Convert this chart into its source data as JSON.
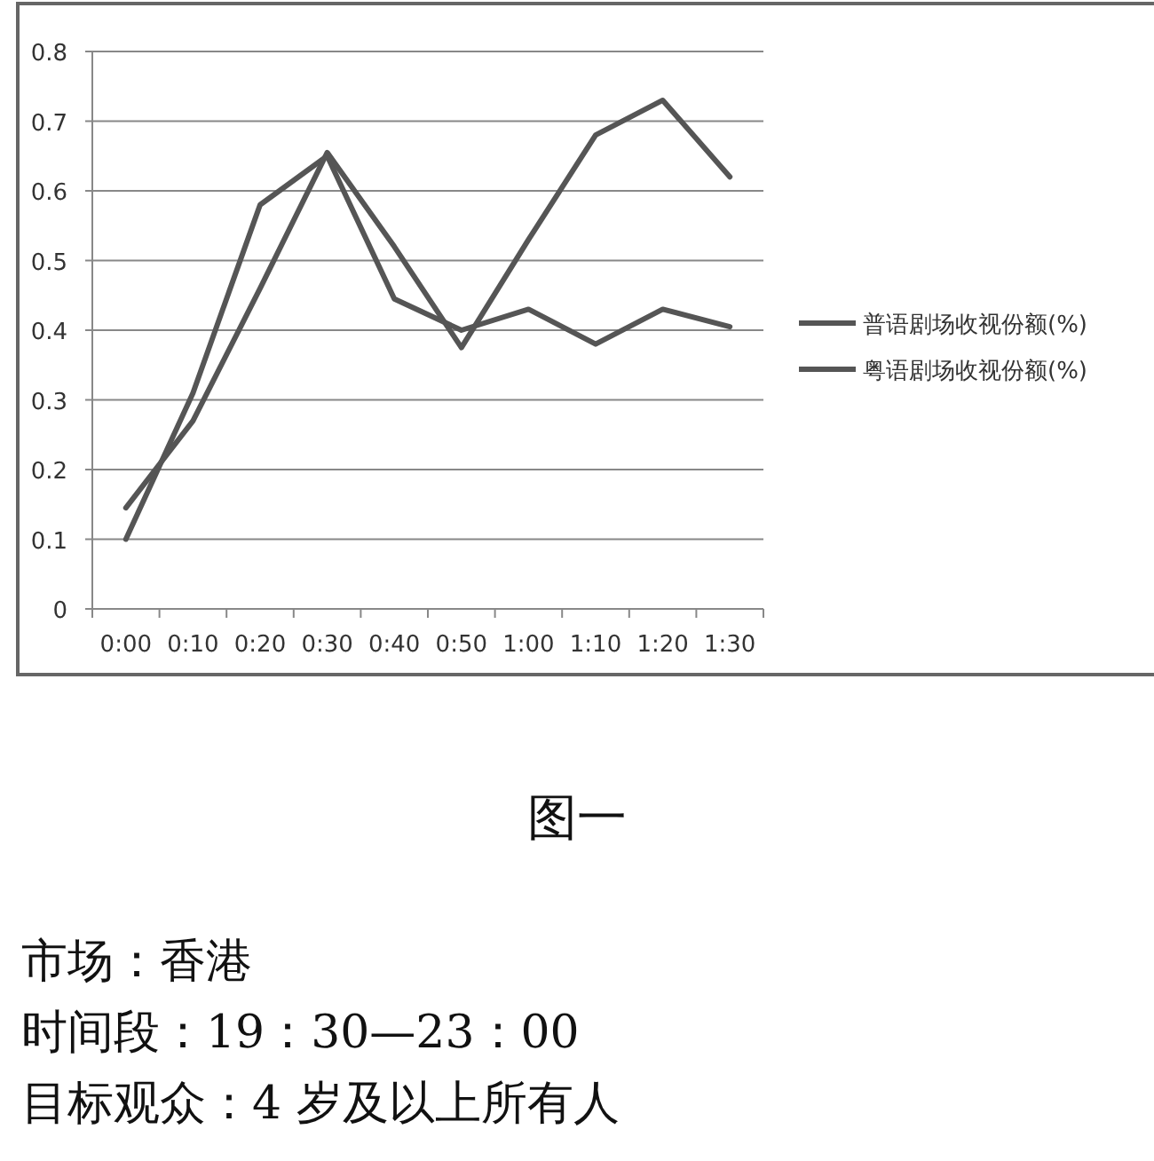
{
  "chart_data": {
    "type": "line",
    "categories": [
      "0:00",
      "0:10",
      "0:20",
      "0:30",
      "0:40",
      "0:50",
      "1:00",
      "1:10",
      "1:20",
      "1:30"
    ],
    "series": [
      {
        "name": "普语剧场收视份额(%)",
        "color": "#555555",
        "values": [
          0.1,
          0.31,
          0.58,
          0.65,
          0.445,
          0.4,
          0.43,
          0.38,
          0.43,
          0.405
        ]
      },
      {
        "name": "粤语剧场收视份额(%)",
        "color": "#555555",
        "values": [
          0.145,
          0.27,
          0.46,
          0.655,
          0.52,
          0.375,
          0.53,
          0.68,
          0.73,
          0.62
        ]
      }
    ],
    "ylim": [
      0,
      0.8
    ],
    "yticks": [
      0,
      0.1,
      0.2,
      0.3,
      0.4,
      0.5,
      0.6,
      0.7,
      0.8
    ],
    "grid": "y",
    "legend": "right",
    "line_style": "solid",
    "annotations": [
      "图一",
      "市场：香港",
      "时间段：19：30—23：00",
      "目标观众：4 岁及以上所有人"
    ]
  }
}
